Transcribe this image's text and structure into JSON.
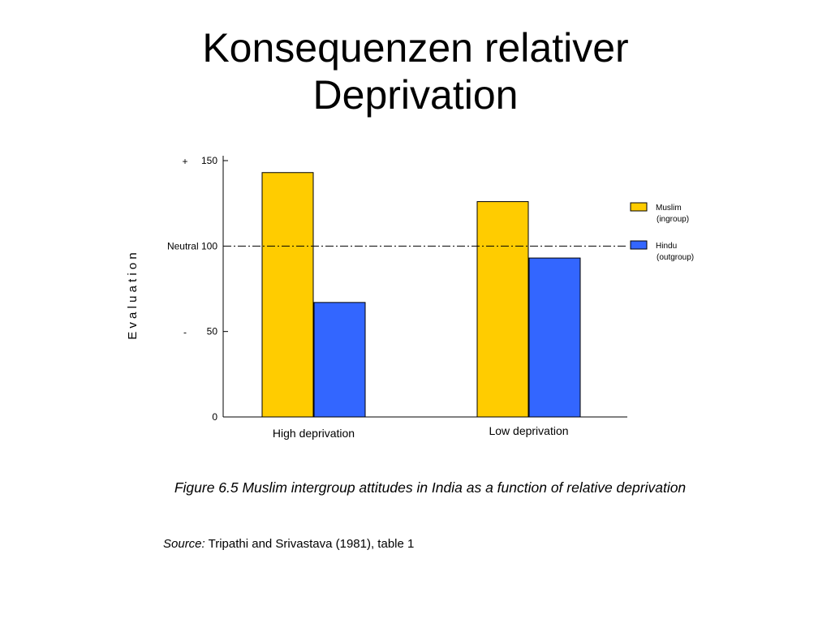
{
  "title_lines": [
    "Konsequenzen relativer",
    "Deprivation"
  ],
  "chart_data": {
    "type": "bar",
    "ylabel": "E v a l u a t i o n",
    "categories": [
      "High deprivation",
      "Low deprivation"
    ],
    "series": [
      {
        "name": "Muslim\n(ingroup)",
        "name_lines": [
          "Muslim",
          "(ingroup)"
        ],
        "values": [
          143,
          126
        ],
        "color": "#FFCC00"
      },
      {
        "name": "Hindu\n(outgroup)",
        "name_lines": [
          "Hindu",
          "(outgroup)"
        ],
        "values": [
          67,
          93
        ],
        "color": "#3366FF"
      }
    ],
    "ylim": [
      0,
      150
    ],
    "yticks": [
      0,
      50,
      100,
      150
    ],
    "ytick_labels": [
      "0",
      "50",
      "Neutral 100",
      "150"
    ],
    "axis_markers": [
      {
        "value": 150,
        "label": "+"
      },
      {
        "value": 50,
        "label": "-"
      }
    ],
    "reference_line": {
      "value": 100,
      "style": "dash-dot"
    },
    "legend_position": "right"
  },
  "caption": "Figure 6.5  Muslim intergroup attitudes in India as a function of relative deprivation",
  "source_label": "Source:",
  "source_text": " Tripathi and Srivastava (1981), table 1"
}
